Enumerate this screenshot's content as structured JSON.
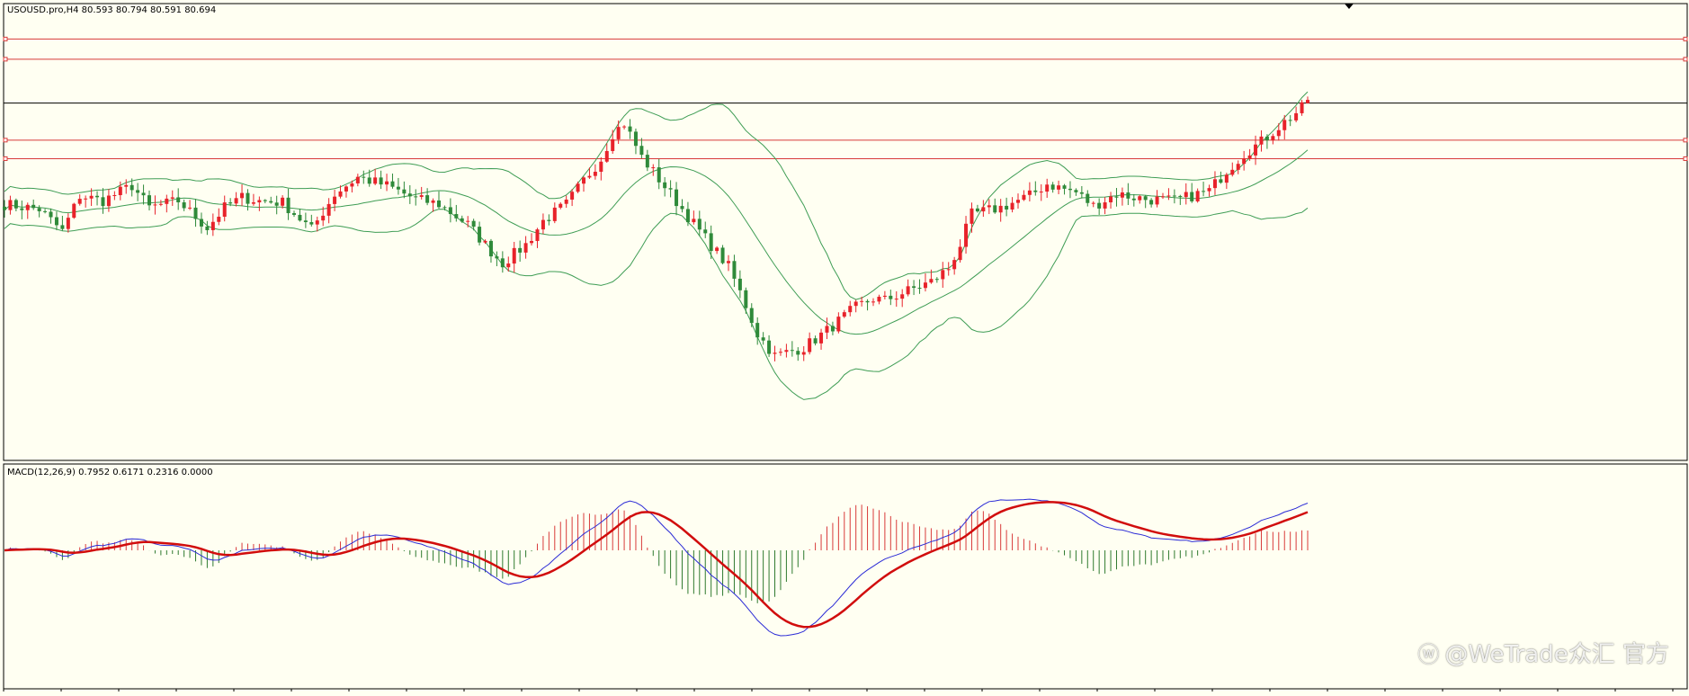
{
  "header": {
    "symbol_info": "USOUSD.pro,H4  80.593 80.794 80.591 80.694"
  },
  "macd": {
    "label": "MACD(12,26,9) 0.7952 0.6171 0.2316 0.0000"
  },
  "watermark": {
    "icon": "weibo-icon",
    "text": "@WeTrade众汇 官方"
  },
  "colors": {
    "background": "#fffff2",
    "bull_candle": "#e8222a",
    "bear_candle": "#2f8a3a",
    "bollinger": "#3f9d55",
    "level_lines": "#d83a3a",
    "price_line": "#000000",
    "macd_main": "#2b2bd6",
    "macd_signal": "#d10d0d",
    "hist_positive": "#d83a3a",
    "hist_negative": "#2f7a2f"
  },
  "chart_data": {
    "type": "candlestick",
    "symbol": "USOUSD.pro",
    "timeframe": "H4",
    "ohlc_current": {
      "open": 80.593,
      "high": 80.794,
      "low": 80.591,
      "close": 80.694
    },
    "close_path": [
      [
        0,
        77.6
      ],
      [
        6,
        77.45
      ],
      [
        10,
        76.8
      ],
      [
        13,
        77.85
      ],
      [
        17,
        77.7
      ],
      [
        22,
        78.15
      ],
      [
        25,
        77.5
      ],
      [
        30,
        77.7
      ],
      [
        35,
        76.9
      ],
      [
        38,
        77.5
      ],
      [
        41,
        77.8
      ],
      [
        44,
        77.7
      ],
      [
        48,
        77.65
      ],
      [
        53,
        76.85
      ],
      [
        57,
        77.9
      ],
      [
        61,
        78.4
      ],
      [
        66,
        78.15
      ],
      [
        71,
        77.75
      ],
      [
        75,
        77.6
      ],
      [
        80,
        77.0
      ],
      [
        84,
        76.2
      ],
      [
        86,
        75.85
      ],
      [
        90,
        76.4
      ],
      [
        93,
        77.1
      ],
      [
        97,
        77.6
      ],
      [
        100,
        78.3
      ],
      [
        103,
        78.95
      ],
      [
        105,
        79.7
      ],
      [
        107,
        80.0
      ],
      [
        110,
        79.0
      ],
      [
        115,
        77.9
      ],
      [
        120,
        76.8
      ],
      [
        125,
        75.75
      ],
      [
        128,
        74.6
      ],
      [
        130,
        73.75
      ],
      [
        133,
        73.1
      ],
      [
        138,
        73.35
      ],
      [
        142,
        73.85
      ],
      [
        147,
        74.55
      ],
      [
        150,
        74.8
      ],
      [
        152,
        74.75
      ],
      [
        157,
        75.1
      ],
      [
        160,
        75.3
      ],
      [
        163,
        75.7
      ],
      [
        165,
        76.4
      ],
      [
        167,
        77.3
      ],
      [
        172,
        77.5
      ],
      [
        177,
        77.85
      ],
      [
        180,
        78.2
      ],
      [
        185,
        77.95
      ],
      [
        188,
        77.55
      ],
      [
        192,
        77.9
      ],
      [
        197,
        77.75
      ],
      [
        202,
        77.7
      ],
      [
        208,
        78.0
      ],
      [
        211,
        78.6
      ],
      [
        214,
        79.1
      ],
      [
        217,
        79.45
      ],
      [
        220,
        79.9
      ],
      [
        224,
        80.45
      ],
      [
        225,
        80.69
      ]
    ],
    "bollinger_bands": {
      "period": 20
    },
    "horizontal_levels": [
      82.5,
      81.9,
      80.6,
      79.5,
      78.95
    ],
    "macd": {
      "params": [
        12,
        26,
        9
      ],
      "main": 0.7952,
      "signal": 0.6171,
      "histogram": 0.2316,
      "level": 0.0
    }
  }
}
